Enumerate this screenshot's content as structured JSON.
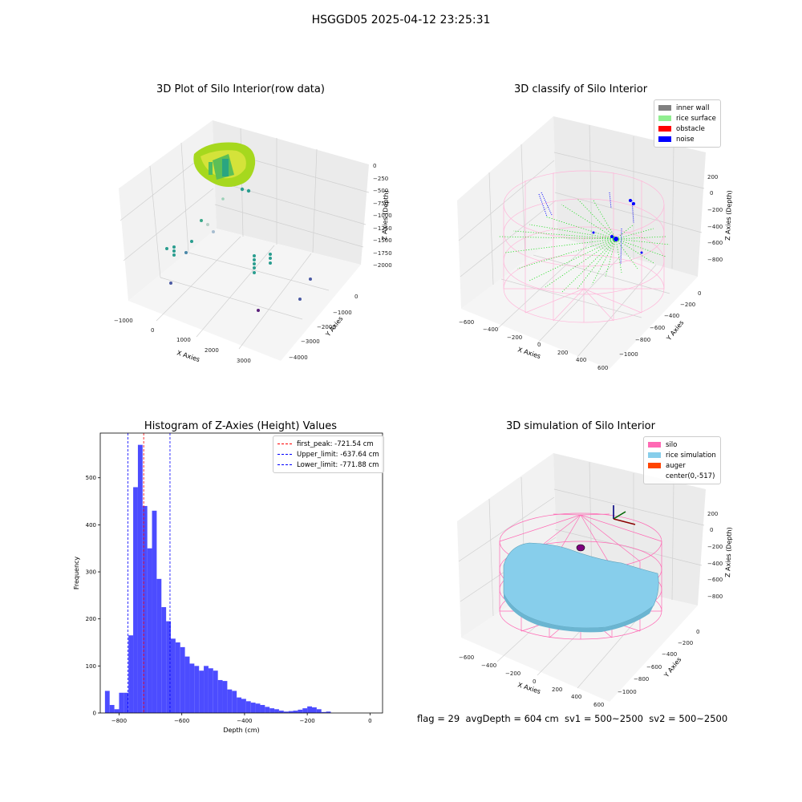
{
  "suptitle": "HSGGD05 2025-04-12 23:25:31",
  "footer_text": "flag = 29  avgDepth = 604 cm  sv1 = 500~2500  sv2 = 500~2500",
  "colors": {
    "hist_bar": "#4c4cff",
    "first_peak": "#ff0000",
    "limits": "#0000ff",
    "inner_wall": "#808080",
    "rice_surface": "#90ee90",
    "obstacle": "#ff0000",
    "noise": "#0000ff",
    "silo": "#ff69b4",
    "rice_simulation": "#87ceeb",
    "auger": "#ff4500"
  },
  "chart_data": [
    {
      "type": "scatter",
      "title": "3D Plot of Silo Interior(row data)",
      "xlabel": "X Axies",
      "ylabel": "Y Axies",
      "zlabel": "Z Axies (Depth)",
      "x_ticks": [
        "−1000",
        "0",
        "1000",
        "2000",
        "3000"
      ],
      "y_ticks": [
        "0",
        "−1000",
        "−2000",
        "−3000",
        "−4000"
      ],
      "z_ticks": [
        "0",
        "−250",
        "−500",
        "−750",
        "−1000",
        "−1250",
        "−1500",
        "−1750",
        "−2000"
      ]
    },
    {
      "type": "scatter",
      "title": "3D classify of Silo Interior",
      "xlabel": "X Axies",
      "ylabel": "Y Axies",
      "zlabel": "Z Axies (Depth)",
      "x_ticks": [
        "−600",
        "−400",
        "−200",
        "0",
        "200",
        "400",
        "600"
      ],
      "y_ticks": [
        "0",
        "−200",
        "−400",
        "−600",
        "−800",
        "−1000"
      ],
      "z_ticks": [
        "200",
        "0",
        "−200",
        "−400",
        "−600",
        "−800"
      ],
      "legend": [
        "inner wall",
        "rice surface",
        "obstacle",
        "noise"
      ]
    },
    {
      "type": "bar",
      "title": "Histogram of Z-Axies (Height) Values",
      "xlabel": "Depth (cm)",
      "ylabel": "Frequency",
      "xlim": [
        -860,
        40
      ],
      "ylim": [
        0,
        595
      ],
      "x_ticks": [
        -800,
        -600,
        -400,
        -200,
        0
      ],
      "x_tick_labels": [
        "−800",
        "−600",
        "−400",
        "−200",
        "0"
      ],
      "y_ticks": [
        0,
        100,
        200,
        300,
        400,
        500
      ],
      "bin_start": -845,
      "bin_width": 15,
      "values": [
        47,
        17,
        8,
        43,
        43,
        165,
        480,
        570,
        440,
        350,
        430,
        285,
        225,
        195,
        158,
        150,
        140,
        120,
        105,
        100,
        90,
        100,
        95,
        90,
        70,
        68,
        50,
        47,
        33,
        30,
        25,
        22,
        20,
        17,
        13,
        10,
        8,
        5,
        3,
        4,
        5,
        7,
        10,
        14,
        12,
        8,
        2,
        3
      ],
      "lines": [
        {
          "label": "first_peak: -721.54 cm",
          "x": -721.54,
          "color": "#ff0000"
        },
        {
          "label": "Upper_limit: -637.64 cm",
          "x": -637.64,
          "color": "#0000ff"
        },
        {
          "label": "Lower_limit: -771.88 cm",
          "x": -771.88,
          "color": "#0000ff"
        }
      ]
    },
    {
      "type": "surface",
      "title": "3D simulation of Silo Interior",
      "xlabel": "X Axies",
      "ylabel": "Y Axies",
      "zlabel": "Z Axies (Depth)",
      "x_ticks": [
        "−600",
        "−400",
        "−200",
        "0",
        "200",
        "400",
        "600"
      ],
      "y_ticks": [
        "0",
        "−200",
        "−400",
        "−600",
        "−800",
        "−1000"
      ],
      "z_ticks": [
        "200",
        "0",
        "−200",
        "−400",
        "−600",
        "−800"
      ],
      "legend": [
        "silo",
        "rice simulation",
        "auger",
        "center(0,-517)"
      ]
    }
  ]
}
